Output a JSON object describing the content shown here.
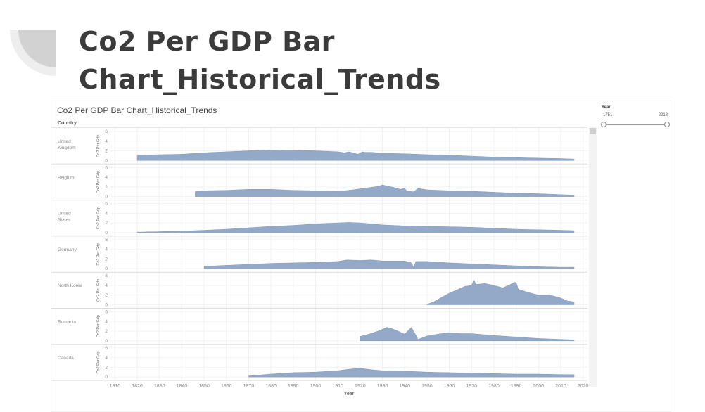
{
  "slide": {
    "title_line1": "Co2 Per GDP Bar",
    "title_line2": "Chart_Historical_Trends"
  },
  "dashboard": {
    "title": "Co2 Per GDP Bar Chart_Historical_Trends",
    "column_header": "Country"
  },
  "filter": {
    "title": "Year",
    "min": "1751",
    "max": "2018"
  },
  "chart_data": {
    "type": "area",
    "title": "Co2 Per GDP Bar Chart_Historical_Trends",
    "xlabel": "Year",
    "ylabel": "Co2 Per Gdp",
    "xlim": [
      1808,
      2022
    ],
    "ylim": [
      0,
      6
    ],
    "x_ticks": [
      "1810",
      "1820",
      "1830",
      "1840",
      "1850",
      "1860",
      "1870",
      "1880",
      "1890",
      "1900",
      "1910",
      "1920",
      "1930",
      "1940",
      "1950",
      "1960",
      "1970",
      "1980",
      "1990",
      "2000",
      "2010",
      "2020"
    ],
    "y_ticks": [
      "0",
      "2",
      "4",
      "6"
    ],
    "row_dimension": "Country",
    "color": "#93a9c7",
    "grid": true,
    "series": [
      {
        "name": "United Kingdom",
        "points": [
          [
            1820,
            1.1
          ],
          [
            1830,
            1.2
          ],
          [
            1840,
            1.3
          ],
          [
            1850,
            1.6
          ],
          [
            1860,
            1.8
          ],
          [
            1870,
            2.0
          ],
          [
            1880,
            2.2
          ],
          [
            1890,
            2.1
          ],
          [
            1900,
            2.0
          ],
          [
            1910,
            1.8
          ],
          [
            1913,
            1.6
          ],
          [
            1915,
            1.8
          ],
          [
            1919,
            1.3
          ],
          [
            1921,
            1.8
          ],
          [
            1922,
            1.7
          ],
          [
            1925,
            1.7
          ],
          [
            1930,
            1.5
          ],
          [
            1940,
            1.4
          ],
          [
            1950,
            1.2
          ],
          [
            1960,
            1.1
          ],
          [
            1970,
            0.9
          ],
          [
            1980,
            0.7
          ],
          [
            1990,
            0.6
          ],
          [
            2000,
            0.5
          ],
          [
            2010,
            0.4
          ],
          [
            2016,
            0.3
          ]
        ]
      },
      {
        "name": "Belgium",
        "points": [
          [
            1846,
            1.0
          ],
          [
            1850,
            1.2
          ],
          [
            1860,
            1.3
          ],
          [
            1870,
            1.5
          ],
          [
            1880,
            1.5
          ],
          [
            1890,
            1.3
          ],
          [
            1900,
            1.2
          ],
          [
            1910,
            1.1
          ],
          [
            1915,
            1.3
          ],
          [
            1920,
            1.6
          ],
          [
            1925,
            1.9
          ],
          [
            1928,
            2.1
          ],
          [
            1930,
            2.4
          ],
          [
            1935,
            1.9
          ],
          [
            1938,
            1.5
          ],
          [
            1940,
            1.7
          ],
          [
            1941,
            1.1
          ],
          [
            1944,
            1.0
          ],
          [
            1946,
            1.7
          ],
          [
            1950,
            1.4
          ],
          [
            1960,
            1.2
          ],
          [
            1970,
            1.1
          ],
          [
            1980,
            0.9
          ],
          [
            1990,
            0.7
          ],
          [
            2000,
            0.6
          ],
          [
            2010,
            0.4
          ],
          [
            2016,
            0.3
          ]
        ]
      },
      {
        "name": "United States",
        "points": [
          [
            1820,
            0.1
          ],
          [
            1830,
            0.2
          ],
          [
            1840,
            0.3
          ],
          [
            1850,
            0.5
          ],
          [
            1860,
            0.7
          ],
          [
            1870,
            1.0
          ],
          [
            1880,
            1.3
          ],
          [
            1890,
            1.5
          ],
          [
            1900,
            1.8
          ],
          [
            1910,
            2.0
          ],
          [
            1915,
            2.1
          ],
          [
            1920,
            2.0
          ],
          [
            1930,
            1.6
          ],
          [
            1940,
            1.4
          ],
          [
            1950,
            1.3
          ],
          [
            1960,
            1.2
          ],
          [
            1970,
            1.1
          ],
          [
            1980,
            0.9
          ],
          [
            1990,
            0.7
          ],
          [
            2000,
            0.6
          ],
          [
            2010,
            0.5
          ],
          [
            2016,
            0.4
          ]
        ]
      },
      {
        "name": "Germany",
        "points": [
          [
            1850,
            0.5
          ],
          [
            1860,
            0.7
          ],
          [
            1870,
            0.9
          ],
          [
            1880,
            1.1
          ],
          [
            1890,
            1.2
          ],
          [
            1900,
            1.3
          ],
          [
            1910,
            1.5
          ],
          [
            1914,
            1.8
          ],
          [
            1920,
            1.7
          ],
          [
            1925,
            1.8
          ],
          [
            1930,
            1.6
          ],
          [
            1935,
            1.6
          ],
          [
            1940,
            1.6
          ],
          [
            1943,
            1.2
          ],
          [
            1944,
            0.3
          ],
          [
            1945,
            1.5
          ],
          [
            1950,
            1.5
          ],
          [
            1960,
            1.2
          ],
          [
            1970,
            1.0
          ],
          [
            1980,
            0.8
          ],
          [
            1990,
            0.6
          ],
          [
            2000,
            0.4
          ],
          [
            2010,
            0.3
          ],
          [
            2016,
            0.3
          ]
        ]
      },
      {
        "name": "North Korea",
        "points": [
          [
            1950,
            0.1
          ],
          [
            1953,
            0.6
          ],
          [
            1956,
            1.4
          ],
          [
            1960,
            2.4
          ],
          [
            1964,
            3.2
          ],
          [
            1967,
            3.8
          ],
          [
            1970,
            4.0
          ],
          [
            1971,
            5.2
          ],
          [
            1972,
            4.2
          ],
          [
            1976,
            4.4
          ],
          [
            1980,
            4.0
          ],
          [
            1984,
            3.5
          ],
          [
            1987,
            4.1
          ],
          [
            1989,
            4.6
          ],
          [
            1990,
            4.6
          ],
          [
            1991,
            3.2
          ],
          [
            1995,
            2.6
          ],
          [
            2000,
            2.0
          ],
          [
            2005,
            2.0
          ],
          [
            2010,
            1.4
          ],
          [
            2013,
            0.8
          ],
          [
            2016,
            0.6
          ]
        ]
      },
      {
        "name": "Romania",
        "points": [
          [
            1920,
            0.9
          ],
          [
            1924,
            1.4
          ],
          [
            1928,
            2.0
          ],
          [
            1932,
            2.8
          ],
          [
            1935,
            2.4
          ],
          [
            1940,
            1.4
          ],
          [
            1943,
            2.8
          ],
          [
            1945,
            1.2
          ],
          [
            1946,
            0.3
          ],
          [
            1950,
            1.0
          ],
          [
            1955,
            1.4
          ],
          [
            1960,
            1.7
          ],
          [
            1965,
            1.5
          ],
          [
            1970,
            1.5
          ],
          [
            1975,
            1.3
          ],
          [
            1980,
            1.1
          ],
          [
            1990,
            0.8
          ],
          [
            2000,
            0.5
          ],
          [
            2010,
            0.3
          ],
          [
            2016,
            0.2
          ]
        ]
      },
      {
        "name": "Canada",
        "points": [
          [
            1870,
            0.2
          ],
          [
            1875,
            0.4
          ],
          [
            1880,
            0.6
          ],
          [
            1890,
            0.9
          ],
          [
            1900,
            1.0
          ],
          [
            1910,
            1.3
          ],
          [
            1915,
            1.6
          ],
          [
            1920,
            1.8
          ],
          [
            1925,
            1.5
          ],
          [
            1930,
            1.3
          ],
          [
            1940,
            1.2
          ],
          [
            1950,
            1.0
          ],
          [
            1960,
            0.9
          ],
          [
            1970,
            0.8
          ],
          [
            1980,
            0.7
          ],
          [
            1990,
            0.6
          ],
          [
            2000,
            0.6
          ],
          [
            2010,
            0.5
          ],
          [
            2016,
            0.5
          ]
        ]
      }
    ]
  }
}
